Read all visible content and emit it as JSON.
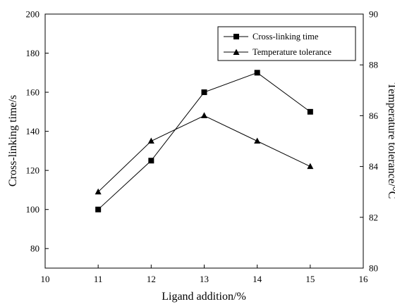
{
  "chart_data": {
    "type": "line",
    "x": [
      11,
      12,
      13,
      14,
      15
    ],
    "xlabel": "Ligand addition/%",
    "ylabel_left": "Cross-linking time/s",
    "ylabel_right": "Temperature tolerance/°C",
    "xlim": [
      10,
      16
    ],
    "ylim_left": [
      70,
      200
    ],
    "ylim_right": [
      80,
      90
    ],
    "xticks": [
      10,
      11,
      12,
      13,
      14,
      15,
      16
    ],
    "yticks_left": [
      80,
      100,
      120,
      140,
      160,
      180,
      200
    ],
    "yticks_right": [
      80,
      82,
      84,
      86,
      88,
      90
    ],
    "legend_position": "top-right",
    "grid": false,
    "series": [
      {
        "name": "Cross-linking time",
        "axis": "left",
        "marker": "square",
        "color": "#000000",
        "values": [
          100,
          125,
          160,
          170,
          150
        ]
      },
      {
        "name": "Temperature tolerance",
        "axis": "right",
        "marker": "triangle",
        "color": "#000000",
        "values": [
          83,
          85,
          86,
          85,
          84
        ]
      }
    ]
  }
}
